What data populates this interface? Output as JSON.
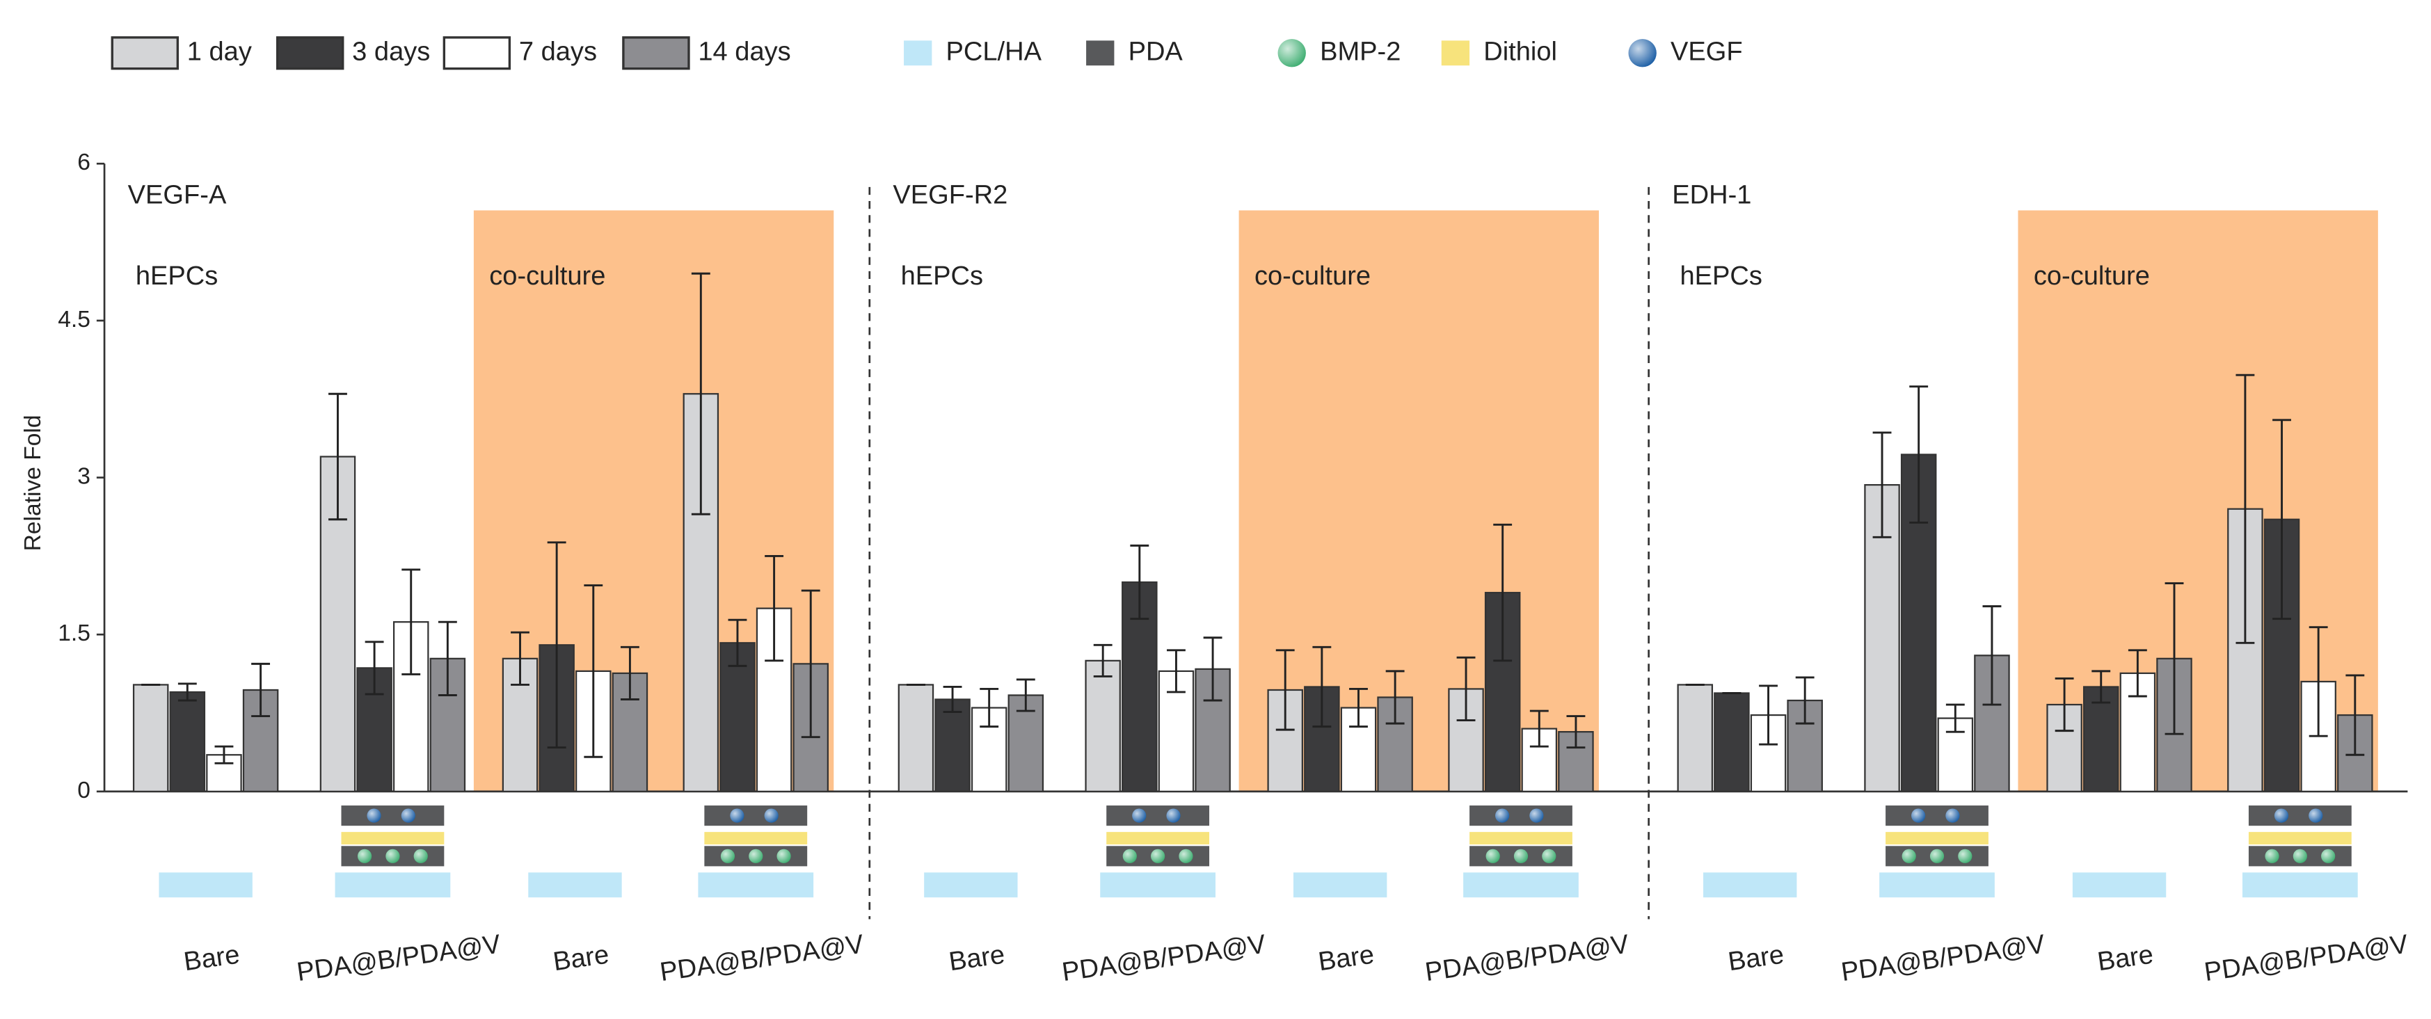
{
  "chart_data": {
    "type": "bar",
    "ylabel": "Relative Fold",
    "ylim": [
      0,
      6
    ],
    "yticks": [
      0,
      1.5,
      3,
      4.5,
      6
    ],
    "panels": [
      {
        "title": "VEGF-A",
        "labels": [
          "hEPCs",
          "co-culture"
        ]
      },
      {
        "title": "VEGF-R2",
        "labels": [
          "hEPCs",
          "co-culture"
        ]
      },
      {
        "title": "EDH-1",
        "labels": [
          "hEPCs",
          "co-culture"
        ]
      }
    ],
    "categories": [
      "Bare",
      "PDA@B/PDA@V",
      "Bare",
      "PDA@B/PDA@V",
      "Bare",
      "PDA@B/PDA@V",
      "Bare",
      "PDA@B/PDA@V",
      "Bare",
      "PDA@B/PDA@V",
      "Bare",
      "PDA@B/PDA@V"
    ],
    "series": [
      {
        "name": "1 day",
        "color": "#d4d5d7",
        "values": [
          1.02,
          3.2,
          1.27,
          3.8,
          1.02,
          1.25,
          0.97,
          0.98,
          1.02,
          2.93,
          0.83,
          2.7
        ],
        "errors": [
          0,
          0.6,
          0.25,
          1.15,
          0,
          0.15,
          0.38,
          0.3,
          0,
          0.5,
          0.25,
          1.28
        ]
      },
      {
        "name": "3 days",
        "color": "#3b3b3d",
        "values": [
          0.95,
          1.18,
          1.4,
          1.42,
          0.88,
          2.0,
          1.0,
          1.9,
          0.94,
          3.22,
          1.0,
          2.6
        ],
        "errors": [
          0.08,
          0.25,
          0.98,
          0.22,
          0.12,
          0.35,
          0.38,
          0.65,
          0,
          0.65,
          0.15,
          0.95
        ]
      },
      {
        "name": "7 days",
        "color": "#ffffff",
        "values": [
          0.35,
          1.62,
          1.15,
          1.75,
          0.8,
          1.15,
          0.8,
          0.6,
          0.73,
          0.7,
          1.13,
          1.05
        ],
        "errors": [
          0.08,
          0.5,
          0.82,
          0.5,
          0.18,
          0.2,
          0.18,
          0.17,
          0.28,
          0.13,
          0.22,
          0.52
        ]
      },
      {
        "name": "14 days",
        "color": "#8d8d91",
        "values": [
          0.97,
          1.27,
          1.13,
          1.22,
          0.92,
          1.17,
          0.9,
          0.57,
          0.87,
          1.3,
          1.27,
          0.73
        ],
        "errors": [
          0.25,
          0.35,
          0.25,
          0.7,
          0.15,
          0.3,
          0.25,
          0.15,
          0.22,
          0.47,
          0.72,
          0.38
        ]
      }
    ],
    "materials": [
      {
        "name": "PCL/HA",
        "color": "#bfe7f8",
        "shape": "square"
      },
      {
        "name": "PDA",
        "color": "#58595b",
        "shape": "square"
      },
      {
        "name": "BMP-2",
        "color": "#3fae72",
        "shape": "sphere"
      },
      {
        "name": "Dithiol",
        "color": "#f7e37c",
        "shape": "square"
      },
      {
        "name": "VEGF",
        "color": "#1d5fa6",
        "shape": "sphere"
      }
    ],
    "highlight_color": "#fdc18c"
  }
}
